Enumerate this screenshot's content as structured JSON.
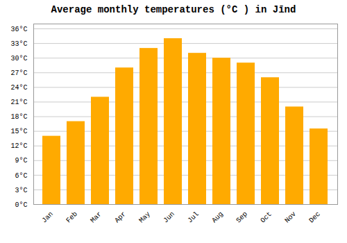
{
  "chart_data": {
    "type": "bar",
    "title": "Average monthly temperatures (°C ) in Jīnd",
    "categories": [
      "Jan",
      "Feb",
      "Mar",
      "Apr",
      "May",
      "Jun",
      "Jul",
      "Aug",
      "Sep",
      "Oct",
      "Nov",
      "Dec"
    ],
    "values": [
      14,
      17,
      22,
      28,
      32,
      34,
      31,
      30,
      29,
      26,
      20,
      15.5
    ],
    "color": "#FFAA00",
    "ylim": [
      0,
      37
    ],
    "yticks": [
      {
        "value": 0,
        "label": "0°C"
      },
      {
        "value": 3,
        "label": "3°C"
      },
      {
        "value": 6,
        "label": "6°C"
      },
      {
        "value": 9,
        "label": "9°C"
      },
      {
        "value": 12,
        "label": "12°C"
      },
      {
        "value": 15,
        "label": "15°C"
      },
      {
        "value": 18,
        "label": "18°C"
      },
      {
        "value": 21,
        "label": "21°C"
      },
      {
        "value": 24,
        "label": "24°C"
      },
      {
        "value": 27,
        "label": "27°C"
      },
      {
        "value": 30,
        "label": "30°C"
      },
      {
        "value": 33,
        "label": "33°C"
      },
      {
        "value": 36,
        "label": "36°C"
      }
    ],
    "grid": true
  }
}
